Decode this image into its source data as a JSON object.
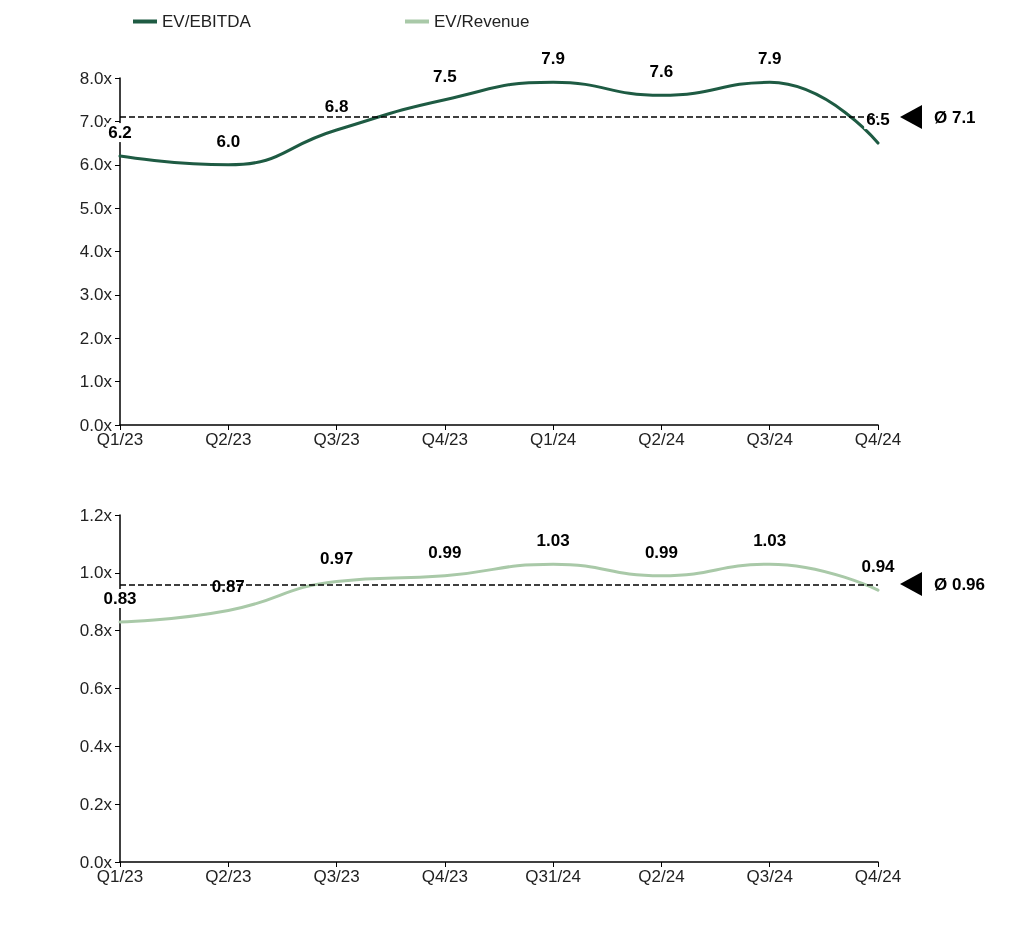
{
  "chart_data": [
    {
      "type": "line",
      "categories": [
        "Q1/23",
        "Q2/23",
        "Q3/23",
        "Q4/23",
        "Q1/24",
        "Q2/24",
        "Q3/24",
        "Q4/24"
      ],
      "series": [
        {
          "name": "EV/EBITDA",
          "color": "#1e5b43",
          "values": [
            6.2,
            6.0,
            6.8,
            7.5,
            7.9,
            7.6,
            7.9,
            6.5
          ],
          "value_labels": [
            "6.2",
            "6.0",
            "6.8",
            "7.5",
            "7.9",
            "7.6",
            "7.9",
            "6.5"
          ]
        }
      ],
      "ylim": [
        0,
        8
      ],
      "yticks": [
        {
          "value": 0,
          "label": "0.0x"
        },
        {
          "value": 1,
          "label": "1.0x"
        },
        {
          "value": 2,
          "label": "2.0x"
        },
        {
          "value": 3,
          "label": "3.0x"
        },
        {
          "value": 4,
          "label": "4.0x"
        },
        {
          "value": 5,
          "label": "5.0x"
        },
        {
          "value": 6,
          "label": "6.0x"
        },
        {
          "value": 7,
          "label": "7.0x"
        },
        {
          "value": 8,
          "label": "8.0x"
        }
      ],
      "ref_lines": [
        {
          "axis": "y",
          "value": 7.1,
          "label": "Ø 7.1",
          "color": "#000000",
          "line_style": "dashed"
        }
      ],
      "grid": false,
      "legend": "top left",
      "marker": "none",
      "line_style": "solid"
    },
    {
      "type": "line",
      "categories": [
        "Q1/23",
        "Q2/23",
        "Q3/23",
        "Q4/23",
        "Q31/24",
        "Q2/24",
        "Q3/24",
        "Q4/24"
      ],
      "series": [
        {
          "name": "EV/Revenue",
          "color": "#a9c9a8",
          "values": [
            0.83,
            0.87,
            0.97,
            0.99,
            1.03,
            0.99,
            1.03,
            0.94
          ],
          "value_labels": [
            "0.83",
            "0.87",
            "0.97",
            "0.99",
            "1.03",
            "0.99",
            "1.03",
            "0.94"
          ]
        }
      ],
      "ylim": [
        0,
        1.2
      ],
      "yticks": [
        {
          "value": 0,
          "label": "0.0x"
        },
        {
          "value": 0.2,
          "label": "0.2x"
        },
        {
          "value": 0.4,
          "label": "0.4x"
        },
        {
          "value": 0.6,
          "label": "0.6x"
        },
        {
          "value": 0.8,
          "label": "0.8x"
        },
        {
          "value": 1.0,
          "label": "1.0x"
        },
        {
          "value": 1.2,
          "label": "1.2x"
        }
      ],
      "ref_lines": [
        {
          "axis": "y",
          "value": 0.96,
          "label": "Ø 0.96",
          "color": "#000000",
          "line_style": "dashed"
        }
      ],
      "grid": false,
      "legend": "top",
      "marker": "none",
      "line_style": "solid"
    }
  ]
}
